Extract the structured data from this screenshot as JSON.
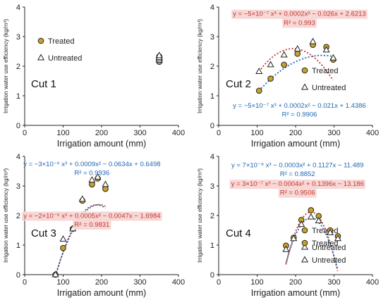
{
  "colors": {
    "treated_fill": "#c9a227",
    "treated_stroke": "#222222",
    "untreated_fill": "#ffffff",
    "untreated_stroke": "#222222",
    "fit_red": "#c0392b",
    "fit_blue": "#1f66b4",
    "eq_highlight": "#f8d7d7",
    "axis": "#222222"
  },
  "chart_data": [
    {
      "type": "scatter",
      "panel_label": "Cut 1",
      "xlabel": "Irrigation amount (mm)",
      "ylabel": "Irrigation water use efficiency (kg/m³)",
      "xlim": [
        0,
        400
      ],
      "ylim": [
        0,
        4
      ],
      "xticks": [
        "0",
        "100",
        "200",
        "300",
        "400"
      ],
      "yticks": [
        "0",
        "1",
        "2",
        "3",
        "4"
      ],
      "legend": [
        "Treated",
        "Untreated"
      ],
      "legend_placement": "top-left",
      "series": [
        {
          "name": "Treated",
          "marker": "circle",
          "x": [
            350,
            350,
            350,
            350
          ],
          "y": [
            2.15,
            2.22,
            2.28,
            2.33
          ]
        },
        {
          "name": "Untreated",
          "marker": "triangle",
          "x": [
            350,
            350,
            350,
            350
          ],
          "y": [
            2.2,
            2.25,
            2.3,
            2.36
          ]
        }
      ],
      "annotations": []
    },
    {
      "type": "scatter",
      "panel_label": "Cut 2",
      "xlabel": "Irrigation amount (mm)",
      "ylabel": "Irrigation water use efficiency (kg/m³)",
      "xlim": [
        0,
        400
      ],
      "ylim": [
        0,
        4
      ],
      "xticks": [
        "0",
        "100",
        "200",
        "300",
        "400"
      ],
      "yticks": [
        "0",
        "1",
        "2",
        "3",
        "4"
      ],
      "legend": [
        "Treated",
        "Untreated"
      ],
      "legend_placement": "middle-right",
      "series": [
        {
          "name": "Treated",
          "marker": "circle",
          "x": [
            105,
            135,
            170,
            205,
            245,
            280,
            298
          ],
          "y": [
            1.17,
            1.58,
            2.05,
            2.42,
            2.72,
            2.65,
            2.22
          ]
        },
        {
          "name": "Untreated",
          "marker": "triangle",
          "x": [
            105,
            135,
            170,
            205,
            245,
            280,
            298
          ],
          "y": [
            1.82,
            2.05,
            2.38,
            2.58,
            2.83,
            2.55,
            2.28
          ]
        }
      ],
      "annotations": [
        {
          "text": "y = −5×10⁻⁷ x³ + 0.0002x² − 0.026x + 2.6213",
          "color": "red",
          "highlight": true,
          "cx": 210,
          "cy": 3.78
        },
        {
          "text": "R² = 0.993",
          "color": "red",
          "highlight": true,
          "cx": 210,
          "cy": 3.48
        },
        {
          "text": "y = −5×10⁻⁷ x³ + 0.0002x² − 0.021x + 1.4386",
          "color": "blue",
          "highlight": false,
          "cx": 210,
          "cy": 0.68
        },
        {
          "text": "R² = 0.9906",
          "color": "blue",
          "highlight": false,
          "cx": 210,
          "cy": 0.38
        }
      ]
    },
    {
      "type": "scatter",
      "panel_label": "Cut 3",
      "xlabel": "Irrigation amount (mm)",
      "ylabel": "Irrigation water use efficiency (kg/m³)",
      "xlim": [
        0,
        400
      ],
      "ylim": [
        0,
        4
      ],
      "xticks": [
        "0",
        "100",
        "200",
        "300",
        "400"
      ],
      "yticks": [
        "0",
        "1",
        "2",
        "3",
        "4"
      ],
      "legend": [
        "Treated",
        "Untreated"
      ],
      "legend_placement": "bottom-right",
      "series": [
        {
          "name": "Treated",
          "marker": "circle",
          "x": [
            80,
            100,
            125,
            150,
            175,
            190,
            210
          ],
          "y": [
            0.0,
            0.9,
            1.55,
            2.5,
            3.05,
            3.25,
            2.9
          ]
        },
        {
          "name": "Untreated",
          "marker": "triangle",
          "x": [
            80,
            100,
            125,
            150,
            175,
            190,
            210
          ],
          "y": [
            0.0,
            1.2,
            1.55,
            2.55,
            3.2,
            3.3,
            3.05
          ]
        }
      ],
      "annotations": [
        {
          "text": "y = −3×10⁻⁶ x³ + 0.0009x² − 0.0634x + 0.6498",
          "color": "blue",
          "highlight": false,
          "cx": 175,
          "cy": 3.75
        },
        {
          "text": "R² = 0.9936",
          "color": "blue",
          "highlight": false,
          "cx": 175,
          "cy": 3.45
        },
        {
          "text": "y = −2×10⁻⁶ x³ + 0.0005x² − 0.0047x − 1.6984",
          "color": "red",
          "highlight": true,
          "cx": 175,
          "cy": 2.0
        },
        {
          "text": "R² = 0.9831",
          "color": "red",
          "highlight": true,
          "cx": 175,
          "cy": 1.7
        }
      ]
    },
    {
      "type": "scatter",
      "panel_label": "Cut 4",
      "xlabel": "Irrigation amount (mm)",
      "ylabel": "Irrigation water use efficiency (kg/m³)",
      "xlim": [
        0,
        400
      ],
      "ylim": [
        0,
        4
      ],
      "xticks": [
        "0",
        "100",
        "200",
        "300",
        "400"
      ],
      "yticks": [
        "0",
        "1",
        "2",
        "3",
        "4"
      ],
      "legend": [
        "Treated",
        "Untreated"
      ],
      "legend_placement": "bottom-right",
      "series": [
        {
          "name": "Treated",
          "marker": "circle",
          "x": [
            175,
            195,
            215,
            240,
            260,
            290,
            310
          ],
          "y": [
            0.98,
            1.25,
            1.85,
            2.18,
            1.98,
            1.5,
            1.3
          ]
        },
        {
          "name": "Untreated",
          "marker": "triangle",
          "x": [
            175,
            195,
            215,
            240,
            260,
            290,
            310
          ],
          "y": [
            0.85,
            1.22,
            1.7,
            1.95,
            1.82,
            1.42,
            1.22
          ]
        }
      ],
      "annotations": [
        {
          "text": "y = 7×10⁻⁸ x³ − 0.0003x² + 0.1127x − 11.489",
          "color": "blue",
          "highlight": false,
          "cx": 205,
          "cy": 3.72
        },
        {
          "text": "R² = 0.8852",
          "color": "blue",
          "highlight": false,
          "cx": 205,
          "cy": 3.42
        },
        {
          "text": "y = 3×10⁻⁷ x³ − 0.0004x² + 0.1396x − 13.186",
          "color": "red",
          "highlight": true,
          "cx": 205,
          "cy": 3.08
        },
        {
          "text": "R² = 0.9506",
          "color": "red",
          "highlight": true,
          "cx": 205,
          "cy": 2.78
        }
      ]
    }
  ]
}
